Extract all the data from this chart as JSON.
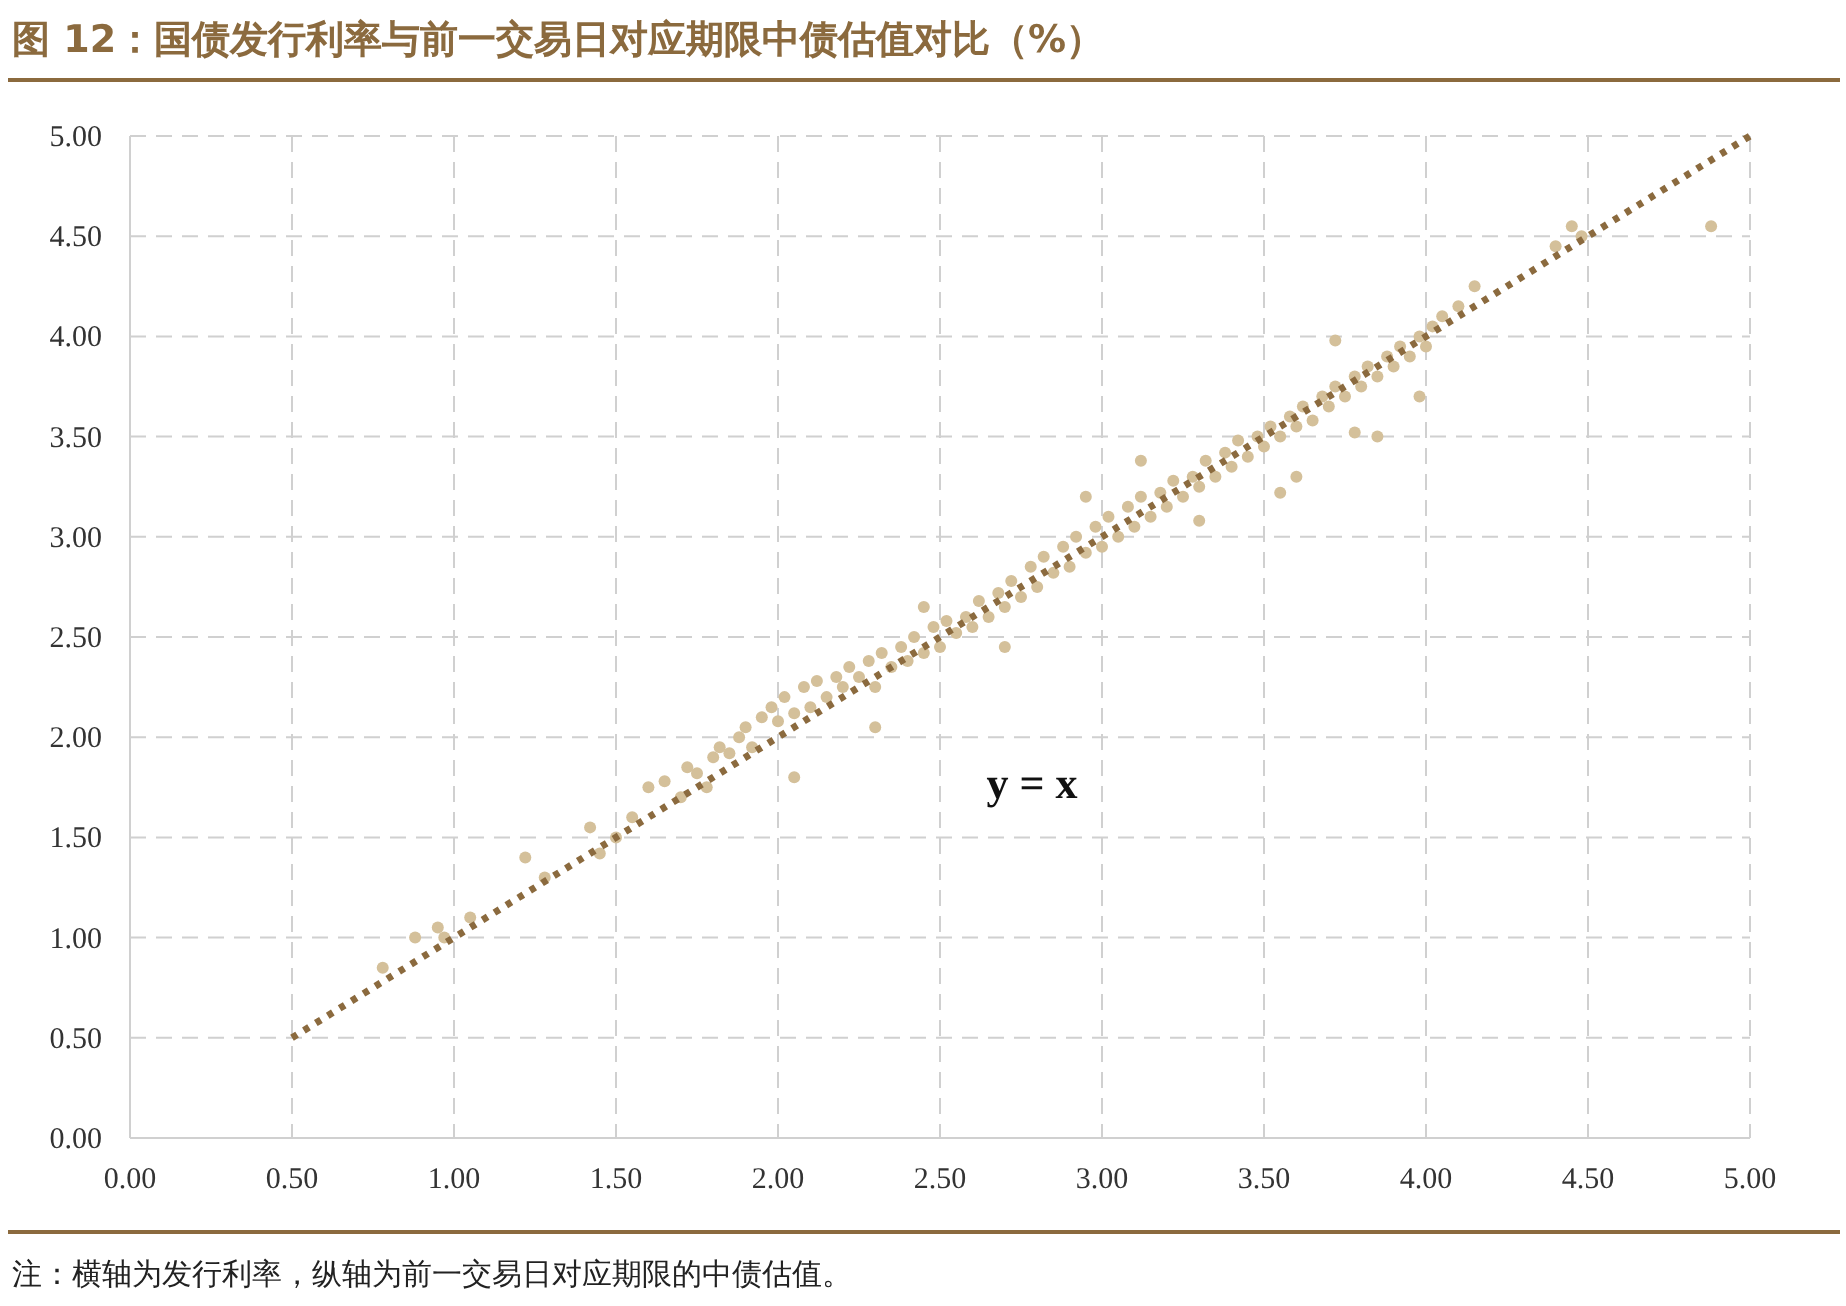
{
  "chart_data": {
    "type": "scatter",
    "title": "图 12：国债发行利率与前一交易日对应期限中债估值对比（%）",
    "annotations": [
      "y = x",
      "注：横轴为发行利率，纵轴为前一交易日对应期限的中债估值。"
    ],
    "xlim": [
      0,
      5
    ],
    "ylim": [
      0,
      5
    ],
    "xticks": [
      {
        "value": 0,
        "label": "0.00"
      },
      {
        "value": 0.5,
        "label": "0.50"
      },
      {
        "value": 1,
        "label": "1.00"
      },
      {
        "value": 1.5,
        "label": "1.50"
      },
      {
        "value": 2,
        "label": "2.00"
      },
      {
        "value": 2.5,
        "label": "2.50"
      },
      {
        "value": 3,
        "label": "3.00"
      },
      {
        "value": 3.5,
        "label": "3.50"
      },
      {
        "value": 4,
        "label": "4.00"
      },
      {
        "value": 4.5,
        "label": "4.50"
      },
      {
        "value": 5,
        "label": "5.00"
      }
    ],
    "yticks": [
      {
        "value": 0,
        "label": "0.00"
      },
      {
        "value": 0.5,
        "label": "0.50"
      },
      {
        "value": 1,
        "label": "1.00"
      },
      {
        "value": 1.5,
        "label": "1.50"
      },
      {
        "value": 2,
        "label": "2.00"
      },
      {
        "value": 2.5,
        "label": "2.50"
      },
      {
        "value": 3,
        "label": "3.00"
      },
      {
        "value": 3.5,
        "label": "3.50"
      },
      {
        "value": 4,
        "label": "4.00"
      },
      {
        "value": 4.5,
        "label": "4.50"
      },
      {
        "value": 5,
        "label": "5.00"
      }
    ],
    "grid": true,
    "series": [
      {
        "color": "#d4c09a",
        "marker": "circle",
        "x": [
          0.78,
          0.88,
          0.95,
          0.97,
          1.05,
          1.22,
          1.28,
          1.42,
          1.45,
          1.5,
          1.55,
          1.6,
          1.65,
          1.7,
          1.72,
          1.75,
          1.78,
          1.8,
          1.82,
          1.85,
          1.88,
          1.9,
          1.92,
          1.95,
          1.98,
          2.0,
          2.02,
          2.05,
          2.08,
          2.1,
          2.12,
          2.15,
          2.18,
          2.2,
          2.22,
          2.25,
          2.28,
          2.3,
          2.32,
          2.35,
          2.38,
          2.4,
          2.42,
          2.45,
          2.48,
          2.5,
          2.52,
          2.55,
          2.58,
          2.6,
          2.62,
          2.65,
          2.68,
          2.7,
          2.72,
          2.75,
          2.78,
          2.8,
          2.82,
          2.85,
          2.88,
          2.9,
          2.92,
          2.95,
          2.98,
          3.0,
          3.02,
          3.05,
          3.08,
          3.1,
          3.12,
          3.15,
          3.18,
          3.2,
          3.22,
          3.25,
          3.28,
          3.3,
          3.32,
          3.35,
          3.38,
          3.4,
          3.42,
          3.45,
          3.48,
          3.5,
          3.52,
          3.55,
          3.58,
          3.6,
          3.62,
          3.65,
          3.68,
          3.7,
          3.72,
          3.75,
          3.78,
          3.8,
          3.82,
          3.85,
          3.88,
          3.9,
          3.92,
          3.95,
          3.98,
          4.0,
          4.02,
          4.05,
          4.1,
          4.15,
          4.4,
          4.45,
          4.48,
          4.88,
          2.05,
          2.3,
          2.7,
          3.12,
          3.3,
          3.55,
          3.6,
          3.78,
          3.85,
          3.98,
          3.72,
          2.95,
          2.45
        ],
        "values": [
          0.85,
          1.0,
          1.05,
          1.0,
          1.1,
          1.4,
          1.3,
          1.55,
          1.42,
          1.5,
          1.6,
          1.75,
          1.78,
          1.7,
          1.85,
          1.82,
          1.75,
          1.9,
          1.95,
          1.92,
          2.0,
          2.05,
          1.95,
          2.1,
          2.15,
          2.08,
          2.2,
          2.12,
          2.25,
          2.15,
          2.28,
          2.2,
          2.3,
          2.25,
          2.35,
          2.3,
          2.38,
          2.25,
          2.42,
          2.35,
          2.45,
          2.38,
          2.5,
          2.42,
          2.55,
          2.45,
          2.58,
          2.52,
          2.6,
          2.55,
          2.68,
          2.6,
          2.72,
          2.65,
          2.78,
          2.7,
          2.85,
          2.75,
          2.9,
          2.82,
          2.95,
          2.85,
          3.0,
          2.92,
          3.05,
          2.95,
          3.1,
          3.0,
          3.15,
          3.05,
          3.2,
          3.1,
          3.22,
          3.15,
          3.28,
          3.2,
          3.3,
          3.25,
          3.38,
          3.3,
          3.42,
          3.35,
          3.48,
          3.4,
          3.5,
          3.45,
          3.55,
          3.5,
          3.6,
          3.55,
          3.65,
          3.58,
          3.7,
          3.65,
          3.75,
          3.7,
          3.8,
          3.75,
          3.85,
          3.8,
          3.9,
          3.85,
          3.95,
          3.9,
          4.0,
          3.95,
          4.05,
          4.1,
          4.15,
          4.25,
          4.45,
          4.55,
          4.5,
          4.55,
          1.8,
          2.05,
          2.45,
          3.38,
          3.08,
          3.22,
          3.3,
          3.52,
          3.5,
          3.7,
          3.98,
          3.2,
          2.65
        ]
      },
      {
        "type": "line",
        "color": "#8b6a3e",
        "line_style": "dotted",
        "marker": "none",
        "x": [
          0.5,
          5
        ],
        "values": [
          0.5,
          5
        ]
      }
    ]
  }
}
